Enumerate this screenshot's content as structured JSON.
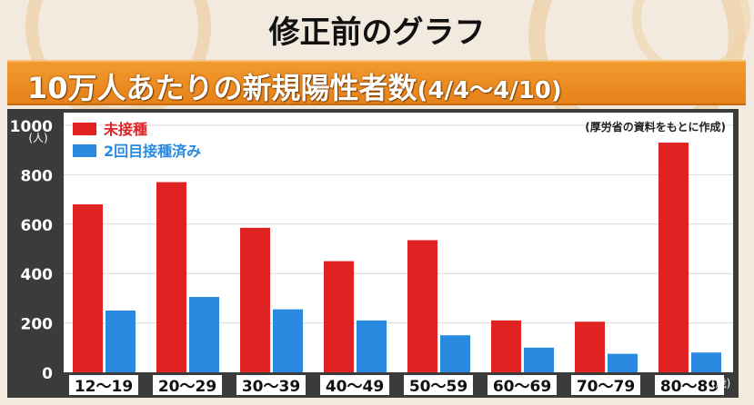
{
  "header": {
    "page_title": "修正前のグラフ"
  },
  "banner": {
    "title": "10万人あたりの新規陽性者数",
    "period": "(4/4～4/10)"
  },
  "chart_data": {
    "type": "bar",
    "source_note": "(厚労省の資料をもとに作成)",
    "y_unit": "(人)",
    "x_unit": "(歳)",
    "ylim": [
      0,
      1000
    ],
    "yticks": [
      0,
      200,
      400,
      600,
      800,
      1000
    ],
    "grid": true,
    "legend_position": "top-left",
    "categories": [
      "12～19",
      "20～29",
      "30～39",
      "40～49",
      "50～59",
      "60～69",
      "70～79",
      "80～89"
    ],
    "series": [
      {
        "name": "未接種",
        "color": "#e02222",
        "values": [
          680,
          770,
          585,
          450,
          535,
          210,
          205,
          930
        ]
      },
      {
        "name": "2回目接種済み",
        "color": "#2a8ae0",
        "values": [
          250,
          305,
          255,
          210,
          150,
          100,
          75,
          80
        ]
      }
    ]
  }
}
